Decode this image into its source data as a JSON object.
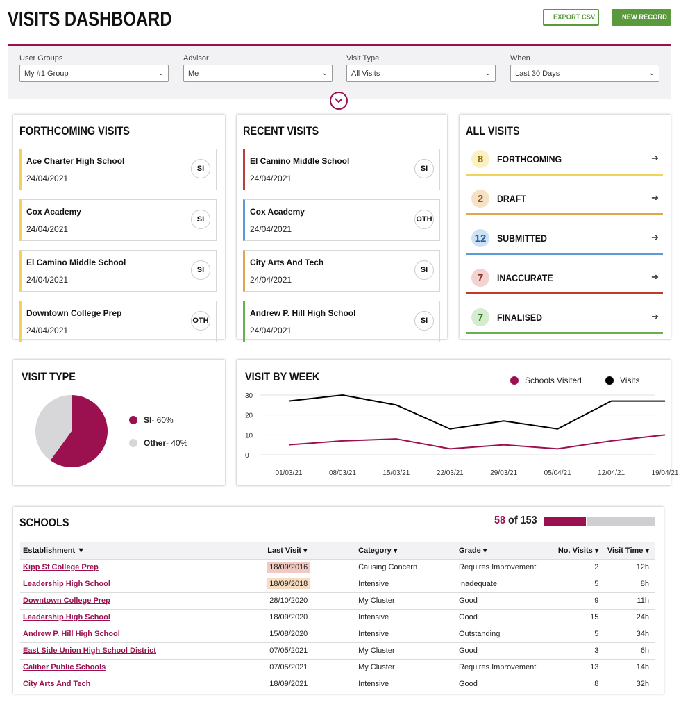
{
  "header": {
    "title": "VISITS DASHBOARD",
    "export_label": "EXPORT CSV",
    "new_label": "NEW RECORD"
  },
  "filters": [
    {
      "label": "User Groups",
      "value": "My #1 Group"
    },
    {
      "label": "Advisor",
      "value": "Me"
    },
    {
      "label": "Visit Type",
      "value": "All Visits"
    },
    {
      "label": "When",
      "value": "Last 30 Days"
    }
  ],
  "forthcoming": {
    "title": "FORTHCOMING VISITS",
    "items": [
      {
        "name": "Ace Charter High School",
        "date": "24/04/2021",
        "type": "SI",
        "color": "#f2d35a"
      },
      {
        "name": "Cox Academy",
        "date": "24/04/2021",
        "type": "SI",
        "color": "#f2d35a"
      },
      {
        "name": "El Camino Middle School",
        "date": "24/04/2021",
        "type": "SI",
        "color": "#f2d35a"
      },
      {
        "name": "Downtown College Prep",
        "date": "24/04/2021",
        "type": "OTH",
        "color": "#f2d35a"
      }
    ]
  },
  "recent": {
    "title": "RECENT VISITS",
    "items": [
      {
        "name": "El Camino Middle School",
        "date": "24/04/2021",
        "type": "SI",
        "color": "#b8403a"
      },
      {
        "name": "Cox Academy",
        "date": "24/04/2021",
        "type": "OTH",
        "color": "#5b9bd5"
      },
      {
        "name": "City Arts And Tech",
        "date": "24/04/2021",
        "type": "SI",
        "color": "#e0a54f"
      },
      {
        "name": "Andrew P. Hill High School",
        "date": "24/04/2021",
        "type": "SI",
        "color": "#6ab04c"
      }
    ]
  },
  "all_visits": {
    "title": "ALL VISITS",
    "items": [
      {
        "count": "8",
        "label": "FORTHCOMING",
        "color": "#f2d35a",
        "bg": "#fbf0c2",
        "text": "#8a6d00"
      },
      {
        "count": "2",
        "label": "DRAFT",
        "color": "#e0a54f",
        "bg": "#f6e1c6",
        "text": "#8a5a1a"
      },
      {
        "count": "12",
        "label": "SUBMITTED",
        "color": "#5b9bd5",
        "bg": "#cfe2f5",
        "text": "#1f5f9e"
      },
      {
        "count": "7",
        "label": "INACCURATE",
        "color": "#c0392b",
        "bg": "#f3d3cf",
        "text": "#8a2a22"
      },
      {
        "count": "7",
        "label": "FINALISED",
        "color": "#6ab04c",
        "bg": "#d6ecd0",
        "text": "#3a7a24"
      }
    ]
  },
  "visit_type": {
    "title": "VISIT TYPE",
    "legend": [
      {
        "name": "SI",
        "suffix": " - 60%",
        "color": "#9b1150"
      },
      {
        "name": "Other",
        "suffix": " - 40%",
        "color": "#d7d7d9"
      }
    ]
  },
  "visit_by_week": {
    "title": "VISIT BY WEEK"
  },
  "chart_data": [
    {
      "type": "pie",
      "title": "VISIT TYPE",
      "labels": [
        "SI",
        "Other"
      ],
      "values": [
        60,
        40
      ],
      "colors": [
        "#9b1150",
        "#d7d7d9"
      ]
    },
    {
      "type": "line",
      "title": "VISIT BY WEEK",
      "categories": [
        "01/03/21",
        "08/03/21",
        "15/03/21",
        "22/03/21",
        "29/03/21",
        "05/04/21",
        "12/04/21",
        "19/04/21"
      ],
      "series": [
        {
          "name": "Schools Visited",
          "color": "#9b1150",
          "values": [
            5,
            7,
            8,
            3,
            5,
            3,
            7,
            10
          ]
        },
        {
          "name": "Visits",
          "color": "#000000",
          "values": [
            27,
            30,
            25,
            13,
            17,
            13,
            27,
            27
          ]
        }
      ],
      "ylim": [
        0,
        30
      ],
      "yticks": [
        0,
        10,
        20,
        30
      ],
      "legend": "top-right",
      "grid": true
    }
  ],
  "schools": {
    "title": "SCHOOLS",
    "count": "58",
    "total_text": " of 153",
    "progress": 0.38,
    "columns": [
      "Establishment",
      "Last Visit",
      "Category",
      "Grade",
      "No. Visits",
      "Visit Time"
    ],
    "sort_icons": [
      "▼",
      "▾",
      "▾",
      "▾",
      "▾",
      "▾"
    ],
    "rows": [
      {
        "establishment": "Kipp Sf College Prep",
        "last_visit": "18/09/2016",
        "highlight": "old",
        "category": "Causing Concern",
        "grade": "Requires Improvement",
        "visits": "2",
        "time": "12h"
      },
      {
        "establishment": "Leadership High School",
        "last_visit": "18/09/2018",
        "highlight": "mid",
        "category": "Intensive",
        "grade": "Inadequate",
        "visits": "5",
        "time": "8h"
      },
      {
        "establishment": "Downtown College Prep",
        "last_visit": "28/10/2020",
        "highlight": "",
        "category": "My Cluster",
        "grade": "Good",
        "visits": "9",
        "time": "11h"
      },
      {
        "establishment": "Leadership High School",
        "last_visit": "18/09/2020",
        "highlight": "",
        "category": "Intensive",
        "grade": "Good",
        "visits": "15",
        "time": "24h"
      },
      {
        "establishment": "Andrew P. Hill High School",
        "last_visit": "15/08/2020",
        "highlight": "",
        "category": "Intensive",
        "grade": "Outstanding",
        "visits": "5",
        "time": "34h"
      },
      {
        "establishment": "East Side Union High School District",
        "last_visit": "07/05/2021",
        "highlight": "",
        "category": "My Cluster",
        "grade": "Good",
        "visits": "3",
        "time": "6h"
      },
      {
        "establishment": "Caliber Public Schools",
        "last_visit": "07/05/2021",
        "highlight": "",
        "category": "My Cluster",
        "grade": "Requires Improvement",
        "visits": "13",
        "time": "14h"
      },
      {
        "establishment": "City Arts And Tech",
        "last_visit": "18/09/2021",
        "highlight": "",
        "category": "Intensive",
        "grade": "Good",
        "visits": "8",
        "time": "32h"
      }
    ]
  },
  "icons": {
    "export": "export-icon",
    "new": "plus-circle-icon",
    "expand": "chevron-down-icon",
    "arrow": "arrow-right-icon"
  }
}
